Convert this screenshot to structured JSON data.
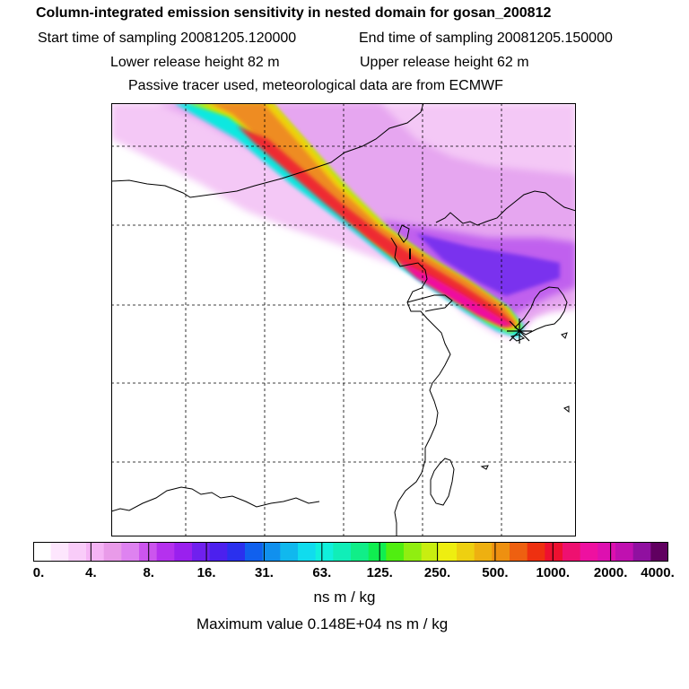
{
  "header": {
    "title": "Column-integrated emission sensitivity in nested domain for gosan_200812",
    "start_time": "Start time of sampling 20081205.120000",
    "end_time": "End time of sampling 20081205.150000",
    "lower_height": "Lower release height   82 m",
    "upper_height": "Upper release height   62 m",
    "tracer_note": "Passive tracer used, meteorological data are from ECMWF"
  },
  "colorbar": {
    "ticks": [
      "0.",
      "4.",
      "8.",
      "16.",
      "31.",
      "63.",
      "125.",
      "250.",
      "500.",
      "1000.",
      "2000.",
      "4000."
    ],
    "colors": [
      "#ffffff",
      "#fde6fd",
      "#f9ccf9",
      "#f5b4f5",
      "#e99be9",
      "#de82f0",
      "#cc55ee",
      "#b531ee",
      "#9a20ee",
      "#7020ee",
      "#4c20ee",
      "#2a30ee",
      "#1060ee",
      "#1090ee",
      "#10b8ee",
      "#10dcee",
      "#10f0dc",
      "#10eeb8",
      "#10ee88",
      "#10ee50",
      "#50ee10",
      "#90ee10",
      "#c8ee10",
      "#eeee10",
      "#eed010",
      "#eeb010",
      "#ee9010",
      "#ee6010",
      "#ee3010",
      "#ee1030",
      "#ee1070",
      "#ee10a0",
      "#dd10b0",
      "#c010b0",
      "#9010a0",
      "#600060"
    ],
    "units": "ns m / kg",
    "max_value": "Maximum value  0.148E+04 ns m / kg"
  },
  "map": {
    "release_marker": "star",
    "colors": {
      "coast": "#000000",
      "grid": "#000000",
      "star": "#000000"
    }
  }
}
